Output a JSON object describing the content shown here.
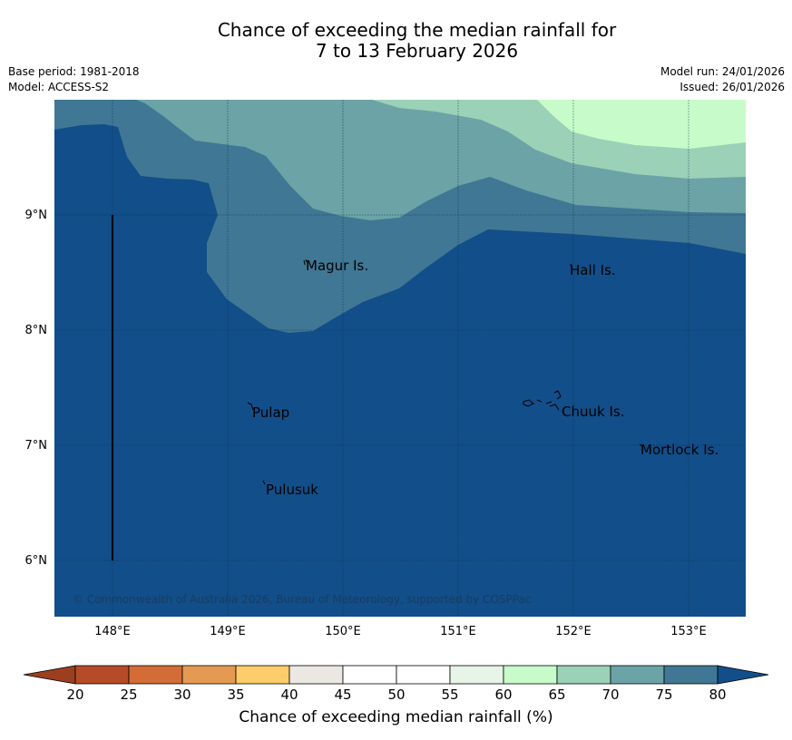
{
  "title": {
    "line1": "Chance of exceeding the median rainfall for",
    "line2": "7 to 13 February 2026"
  },
  "meta": {
    "base_period": "Base period: 1981-2018",
    "model": "Model: ACCESS-S2",
    "model_run": "Model run: 24/01/2026",
    "issued": "Issued: 26/01/2026"
  },
  "map": {
    "lat_ticks": [
      "9°N",
      "8°N",
      "7°N",
      "6°N"
    ],
    "lon_ticks": [
      "148°E",
      "149°E",
      "150°E",
      "151°E",
      "152°E",
      "153°E"
    ],
    "places": [
      "Magur Is.",
      "Hall Is.",
      "Pulap",
      "Chuuk Is.",
      "Mortlock Is.",
      "Pulusuk"
    ],
    "copyright": "© Commonwealth of Australia 2026, Bureau of Meteorology, supported by COSPPac",
    "zone_colors": {
      "80": "#124e89",
      "75": "#407794",
      "70": "#6ca3a6",
      "65": "#9bd1b7",
      "60": "#c7fcca"
    }
  },
  "colorbar": {
    "label": "Chance of exceeding median rainfall (%)",
    "ticks": [
      "20",
      "25",
      "30",
      "35",
      "40",
      "45",
      "50",
      "55",
      "60",
      "65",
      "70",
      "75",
      "80"
    ],
    "colors": [
      "#9b3f20",
      "#b64b28",
      "#d36c37",
      "#e49a52",
      "#fdcd6a",
      "#ebe7e3",
      "#ffffff",
      "#ffffff",
      "#e7f4e8",
      "#c7fcca",
      "#9bd1b7",
      "#6ca3a6",
      "#407794",
      "#124e89"
    ]
  }
}
